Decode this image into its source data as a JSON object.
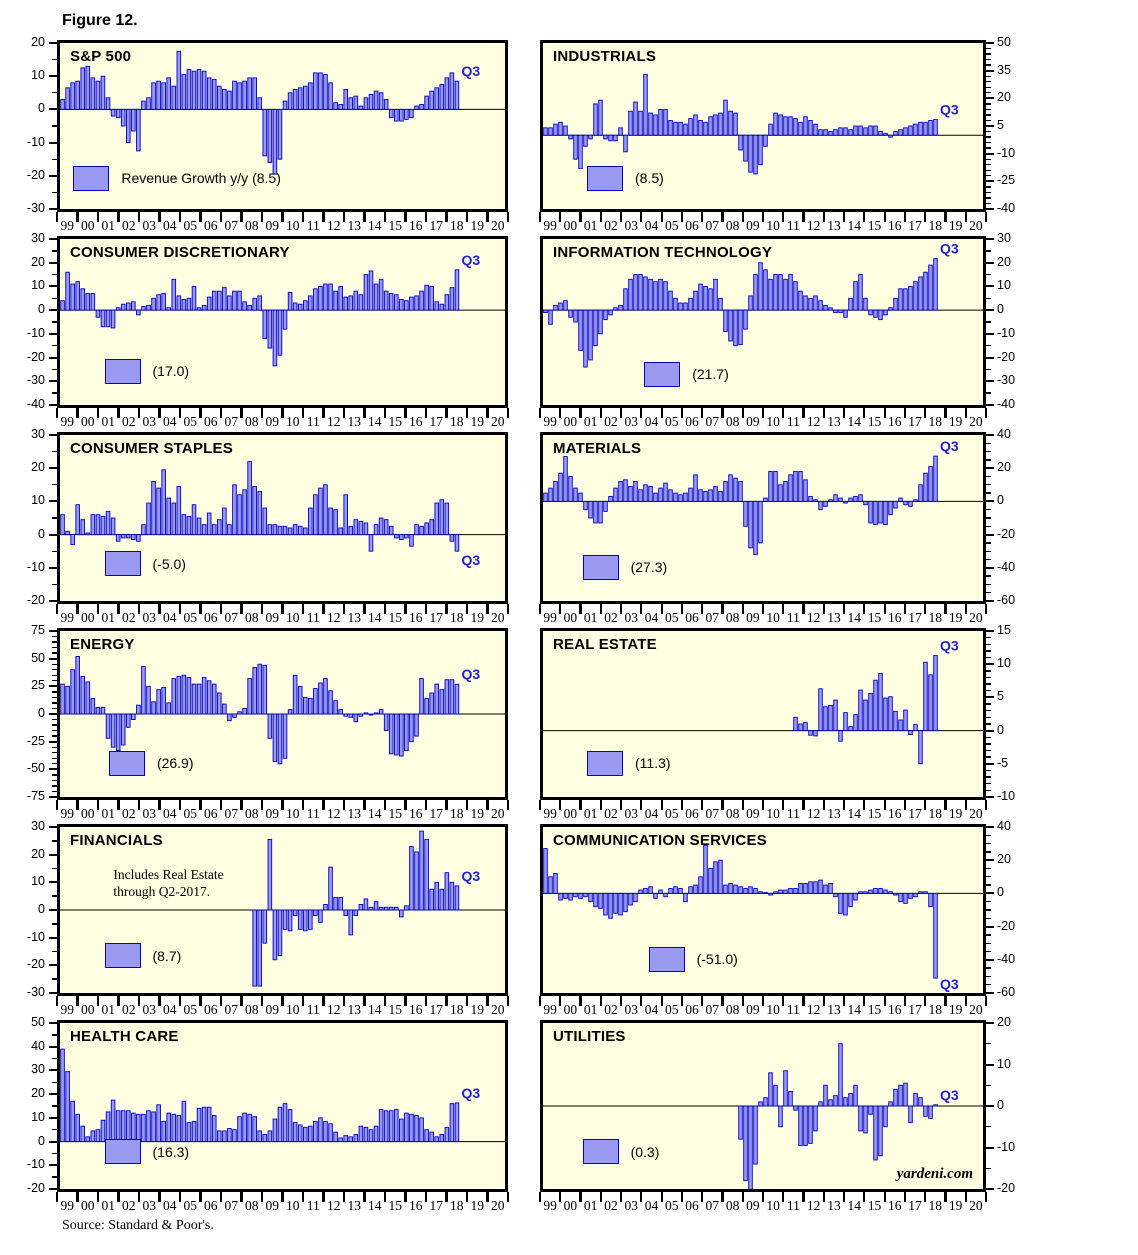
{
  "figure_label": "Figure 12.",
  "source": "Source: Standard & Poor's.",
  "colors": {
    "plot_bg": "#ffffe1",
    "bar_fill": "#9a9af0",
    "bar_stroke": "#0000cd",
    "annotation_blue": "#2020d8",
    "frame": "#000000"
  },
  "x_labels": [
    "99",
    "00",
    "01",
    "02",
    "03",
    "04",
    "05",
    "06",
    "07",
    "08",
    "09",
    "10",
    "11",
    "12",
    "13",
    "14",
    "15",
    "16",
    "17",
    "18",
    "19",
    "20"
  ],
  "chart_data": [
    {
      "type": "bar",
      "slug": "sp500",
      "title": "S&P 500",
      "legend_label": "Revenue Growth y/y (8.5)",
      "latest_value": 8.5,
      "q3_label": "Q3",
      "axis_side": "left",
      "ylim": [
        -30,
        20
      ],
      "yticks": [
        20,
        10,
        0,
        -10,
        -20,
        -30
      ],
      "minor_div": 2,
      "legend_pos": {
        "x": 3,
        "y": 74
      },
      "start_quarter": 0,
      "values": [
        3,
        6.5,
        8,
        8.5,
        12.5,
        13,
        9.5,
        8.5,
        10,
        3.5,
        -2,
        -2.5,
        -5,
        -10,
        -6.5,
        -12.5,
        2.5,
        3.5,
        8,
        8.5,
        8,
        9.5,
        7,
        17.5,
        10.5,
        12,
        11.5,
        12,
        11.5,
        9.5,
        9,
        7,
        6,
        5.5,
        8.5,
        8,
        8.5,
        9.5,
        9.5,
        3.5,
        -14,
        -16,
        -19.5,
        -15,
        2.5,
        5,
        6,
        6.5,
        7,
        8,
        11,
        11,
        10.5,
        8,
        2,
        1.5,
        6,
        3.5,
        4,
        1,
        3.5,
        4.5,
        5.5,
        5,
        3,
        -2.5,
        -3.5,
        -3.5,
        -3,
        -2.5,
        1,
        1.5,
        4,
        5.5,
        6.5,
        7.5,
        9.5,
        11,
        8.5
      ]
    },
    {
      "type": "bar",
      "slug": "industrials",
      "title": "INDUSTRIALS",
      "legend_label": "(8.5)",
      "latest_value": 8.5,
      "q3_label": "Q3",
      "axis_side": "right",
      "ylim": [
        -40,
        50
      ],
      "yticks": [
        50,
        35,
        20,
        5,
        -10,
        -25,
        -40
      ],
      "minor_div": 5,
      "legend_pos": {
        "x": 10,
        "y": 74
      },
      "start_quarter": 0,
      "values": [
        4,
        4,
        6,
        7,
        5,
        -2,
        -13,
        -18,
        -6,
        -2,
        17,
        19,
        -2,
        -3,
        -3,
        4,
        -9,
        13,
        18,
        13,
        33,
        12,
        11,
        14,
        14,
        8,
        7,
        7,
        6,
        9,
        11,
        8,
        7,
        10,
        11,
        12,
        19,
        13,
        12,
        -8,
        -14,
        -20,
        -21,
        -16,
        -6,
        6,
        12,
        11,
        10,
        10,
        9,
        7,
        10,
        8,
        6,
        3,
        3,
        2,
        3,
        4,
        4,
        3,
        5,
        5,
        4,
        5,
        5,
        2,
        1,
        -1,
        2,
        3,
        4,
        5,
        6,
        7,
        7,
        8,
        8.5
      ]
    },
    {
      "type": "bar",
      "slug": "consumer-discretionary",
      "title": "CONSUMER DISCRETIONARY",
      "legend_label": "(17.0)",
      "latest_value": 17.0,
      "q3_label": "Q3",
      "axis_side": "left",
      "ylim": [
        -40,
        30
      ],
      "yticks": [
        30,
        20,
        10,
        0,
        -10,
        -20,
        -30,
        -40
      ],
      "minor_div": 2,
      "legend_pos": {
        "x": 10,
        "y": 72
      },
      "start_quarter": 0,
      "values": [
        4,
        16,
        11,
        12,
        9,
        7,
        7,
        -3,
        -7,
        -7,
        -7.5,
        1,
        2.5,
        3,
        3.5,
        -2,
        1.5,
        2,
        5,
        6.5,
        7,
        1,
        13,
        6,
        4.5,
        5,
        10,
        1,
        2,
        5.5,
        8,
        8,
        9.5,
        6,
        8,
        8,
        3.5,
        2,
        5,
        6,
        -12,
        -16,
        -23.5,
        -19,
        -8,
        7.5,
        3,
        2.5,
        4,
        6,
        9,
        10,
        11,
        11,
        8,
        10,
        5.5,
        6,
        8,
        6.5,
        15,
        16.5,
        11,
        13,
        8,
        7,
        6.5,
        4.5,
        4,
        5.5,
        6,
        8,
        10.5,
        10,
        3.5,
        2.5,
        6.5,
        9.5,
        17
      ]
    },
    {
      "type": "bar",
      "slug": "information-technology",
      "title": "INFORMATION TECHNOLOGY",
      "legend_label": "(21.7)",
      "latest_value": 21.7,
      "q3_label": "Q3",
      "axis_side": "right",
      "ylim": [
        -40,
        30
      ],
      "yticks": [
        30,
        20,
        10,
        0,
        -10,
        -20,
        -30,
        -40
      ],
      "minor_div": 2,
      "legend_pos": {
        "x": 23,
        "y": 74
      },
      "start_quarter": 0,
      "values": [
        -1,
        -6,
        2,
        3,
        4,
        -3,
        -5,
        -17,
        -24,
        -21,
        -15,
        -10,
        -4,
        -2,
        1,
        2,
        9,
        13,
        15,
        15,
        14,
        13,
        12,
        13,
        12,
        8,
        5,
        3,
        3,
        5,
        8,
        11,
        10,
        9,
        13,
        5,
        -9,
        -13,
        -15,
        -14.5,
        -8,
        6,
        15,
        20,
        17,
        13,
        15,
        15,
        13,
        15,
        12,
        8,
        6,
        5,
        6,
        4,
        2,
        1,
        -1,
        -1,
        -3,
        5,
        12,
        15,
        5,
        -2,
        -3,
        -4,
        -2,
        1,
        5,
        9,
        9,
        10,
        12,
        14,
        16,
        19,
        21.7
      ]
    },
    {
      "type": "bar",
      "slug": "consumer-staples",
      "title": "CONSUMER STAPLES",
      "legend_label": "(-5.0)",
      "latest_value": -5.0,
      "q3_label": "Q3",
      "axis_side": "left",
      "ylim": [
        -20,
        30
      ],
      "yticks": [
        30,
        20,
        10,
        0,
        -10,
        -20
      ],
      "minor_div": 2,
      "legend_pos": {
        "x": 10,
        "y": 70
      },
      "start_quarter": 0,
      "values": [
        6,
        1,
        -3,
        9,
        4.5,
        0.5,
        6,
        6,
        5.5,
        7,
        5,
        -2,
        -1,
        -1,
        -1.5,
        -2,
        3,
        9.5,
        16,
        14,
        19.5,
        11,
        9.5,
        14.5,
        6,
        5.5,
        9,
        5,
        3,
        6.5,
        3,
        4.5,
        8,
        3,
        15,
        12,
        13.5,
        22,
        14.5,
        13,
        8,
        3,
        3,
        2.5,
        2.5,
        2,
        3,
        2.5,
        2,
        8,
        12,
        14,
        15,
        8,
        7.5,
        2,
        12,
        2.5,
        4.5,
        4,
        3.5,
        -5,
        3,
        5,
        4.5,
        2.5,
        -1,
        -1.5,
        -1,
        -3.5,
        3,
        2.5,
        3.5,
        4.5,
        9.5,
        10.5,
        9.5,
        -2,
        -5
      ]
    },
    {
      "type": "bar",
      "slug": "materials",
      "title": "MATERIALS",
      "legend_label": "(27.3)",
      "latest_value": 27.3,
      "q3_label": "Q3",
      "axis_side": "right",
      "ylim": [
        -60,
        40
      ],
      "yticks": [
        40,
        20,
        0,
        -20,
        -40,
        -60
      ],
      "minor_div": 4,
      "legend_pos": {
        "x": 9,
        "y": 72
      },
      "start_quarter": 0,
      "values": [
        5,
        8,
        12,
        17,
        27,
        15,
        8,
        5,
        -5,
        -10,
        -13,
        -13,
        -6,
        3,
        8,
        12,
        13,
        9,
        12,
        7,
        10,
        9,
        5,
        8,
        11,
        7,
        5,
        4,
        5,
        8,
        16,
        7,
        6,
        7,
        9,
        6,
        12,
        16,
        14,
        12,
        -15,
        -28,
        -32,
        -25,
        2,
        18,
        18,
        10,
        12,
        16,
        18,
        18,
        13,
        3,
        1,
        -5,
        -3,
        1,
        4,
        2,
        -1,
        2,
        3,
        4,
        -2,
        -13,
        -14,
        -13,
        -14,
        -8,
        -4,
        2,
        -2,
        -3,
        1,
        10,
        17,
        21,
        27.3
      ]
    },
    {
      "type": "bar",
      "slug": "energy",
      "title": "ENERGY",
      "legend_label": "(26.9)",
      "latest_value": 26.9,
      "q3_label": "Q3",
      "axis_side": "left",
      "ylim": [
        -75,
        75
      ],
      "yticks": [
        75,
        50,
        25,
        0,
        -25,
        -50,
        -75
      ],
      "minor_div": 5,
      "legend_pos": {
        "x": 11,
        "y": 72
      },
      "start_quarter": 0,
      "values": [
        27,
        25,
        40,
        52,
        34,
        29,
        14,
        6,
        6,
        -22,
        -30,
        -33,
        -28,
        -12,
        -5,
        8,
        43,
        25,
        11,
        22,
        24,
        10,
        32,
        34,
        35,
        33,
        27,
        27,
        33,
        30,
        27,
        19,
        9,
        -6,
        -3,
        2,
        5,
        32,
        42,
        45,
        44,
        -22,
        -43,
        -45,
        -40,
        4,
        35,
        25,
        15,
        14,
        23,
        28,
        32,
        21,
        12,
        4,
        -2,
        -3,
        -7,
        -2,
        1,
        -1,
        1,
        4,
        -15,
        -36,
        -37,
        -38,
        -33,
        -25,
        -20,
        32,
        14,
        19,
        27,
        22,
        31,
        31,
        26.9
      ]
    },
    {
      "type": "bar",
      "slug": "real-estate",
      "title": "REAL ESTATE",
      "legend_label": "(11.3)",
      "latest_value": 11.3,
      "q3_label": "Q3",
      "axis_side": "right",
      "ylim": [
        -10,
        15
      ],
      "yticks": [
        15,
        10,
        5,
        0,
        -5,
        -10
      ],
      "minor_div": 5,
      "legend_pos": {
        "x": 10,
        "y": 72
      },
      "start_quarter": 50,
      "values": [
        2,
        1,
        1.2,
        -0.7,
        -0.8,
        6.3,
        3.6,
        3.8,
        4.6,
        -1.6,
        2.7,
        0.6,
        2.4,
        6.1,
        4.6,
        5.6,
        7.6,
        8.6,
        4.9,
        5.1,
        2.9,
        1.6,
        3.1,
        -0.6,
        0.9,
        -5,
        10.3,
        8.4,
        11.3
      ]
    },
    {
      "type": "bar",
      "slug": "financials",
      "title": "FINANCIALS",
      "legend_label": "(8.7)",
      "latest_value": 8.7,
      "q3_label": "Q3",
      "note": "Includes Real Estate\nthrough Q2-2017.",
      "note_pos": {
        "x": 12,
        "y": 24
      },
      "axis_side": "left",
      "ylim": [
        -30,
        30
      ],
      "yticks": [
        30,
        20,
        10,
        0,
        -10,
        -20,
        -30
      ],
      "minor_div": 2,
      "legend_pos": {
        "x": 10,
        "y": 70
      },
      "start_quarter": 38,
      "values": [
        -27.5,
        -27.5,
        -12,
        25.5,
        -18,
        -16.5,
        -7,
        -7.5,
        -2,
        -7,
        -7.5,
        -7,
        -2,
        -4.5,
        2,
        15.5,
        4.5,
        4.5,
        -2,
        -9,
        -2,
        2,
        4,
        1,
        3,
        1,
        1,
        1,
        1,
        -2.5,
        1.5,
        23,
        21,
        28.5,
        25.5,
        7.5,
        10,
        7.5,
        13.5,
        10,
        8.7
      ]
    },
    {
      "type": "bar",
      "slug": "communication-services",
      "title": "COMMUNICATION SERVICES",
      "legend_label": "(-51.0)",
      "latest_value": -51.0,
      "q3_label": "Q3",
      "axis_side": "right",
      "ylim": [
        -60,
        40
      ],
      "yticks": [
        40,
        20,
        0,
        -20,
        -40,
        -60
      ],
      "minor_div": 4,
      "legend_pos": {
        "x": 24,
        "y": 72
      },
      "start_quarter": 0,
      "values": [
        27,
        10,
        12,
        -4,
        -3,
        -4,
        -2,
        -3,
        -2,
        -5,
        -8,
        -9,
        -13,
        -15,
        -12,
        -13,
        -11,
        -7,
        -5,
        2,
        3,
        4,
        -3,
        2,
        -2,
        3,
        4,
        3,
        -5,
        4,
        5,
        10,
        29,
        15,
        19,
        20,
        5,
        6,
        5,
        4,
        3,
        4,
        3,
        1,
        0.5,
        -1,
        1,
        2,
        2,
        3,
        3,
        6,
        6,
        7,
        7,
        8,
        5,
        6,
        -2,
        -12,
        -13,
        -8,
        -4,
        1,
        1,
        2,
        3,
        3,
        2,
        1,
        -1,
        -5,
        -6,
        -3,
        -2,
        1,
        1,
        -8,
        -51
      ]
    },
    {
      "type": "bar",
      "slug": "health-care",
      "title": "HEALTH CARE",
      "legend_label": "(16.3)",
      "latest_value": 16.3,
      "q3_label": "Q3",
      "axis_side": "left",
      "ylim": [
        -20,
        50
      ],
      "yticks": [
        50,
        40,
        30,
        20,
        10,
        0,
        -10,
        -20
      ],
      "minor_div": 2,
      "legend_pos": {
        "x": 10,
        "y": 70
      },
      "start_quarter": 0,
      "values": [
        39,
        29.5,
        17,
        11.5,
        6.5,
        2,
        4.5,
        5,
        9,
        12.5,
        17.5,
        13,
        13,
        13,
        12,
        11.5,
        11.5,
        13,
        12.5,
        15.5,
        8.5,
        12,
        11.5,
        11,
        17,
        8,
        8.5,
        14,
        14.5,
        14.5,
        11,
        4.5,
        4.5,
        5.5,
        5,
        10.5,
        12,
        11.5,
        10.5,
        4.5,
        3,
        4.5,
        9.5,
        14.5,
        16,
        13.5,
        8,
        7,
        6,
        6.5,
        8.5,
        10,
        8.5,
        7.5,
        4,
        1.5,
        2.5,
        2,
        3,
        6.5,
        6,
        5,
        6.5,
        13.5,
        13,
        13,
        13.5,
        9.5,
        12,
        11.5,
        11,
        10,
        5,
        4,
        2,
        3,
        6,
        16,
        16.3
      ]
    },
    {
      "type": "bar",
      "slug": "utilities",
      "title": "UTILITIES",
      "legend_label": "(0.3)",
      "latest_value": 0.3,
      "q3_label": "Q3",
      "watermark": "yardeni.com",
      "axis_side": "right",
      "ylim": [
        -20,
        20
      ],
      "yticks": [
        20,
        10,
        0,
        -10,
        -20
      ],
      "minor_div": 2,
      "legend_pos": {
        "x": 9,
        "y": 70
      },
      "start_quarter": 39,
      "values": [
        -8,
        -18,
        -21.5,
        -14,
        1,
        2,
        8,
        5,
        -5,
        8.5,
        3.5,
        -1,
        -9.5,
        -9.5,
        -9,
        -6,
        1,
        5,
        1.5,
        2.5,
        15,
        2,
        3,
        5,
        -6,
        -6.5,
        -2,
        -13,
        -12,
        -5,
        1,
        4,
        5,
        5.5,
        -4,
        3,
        2,
        -2.5,
        -3,
        0.3
      ]
    }
  ]
}
